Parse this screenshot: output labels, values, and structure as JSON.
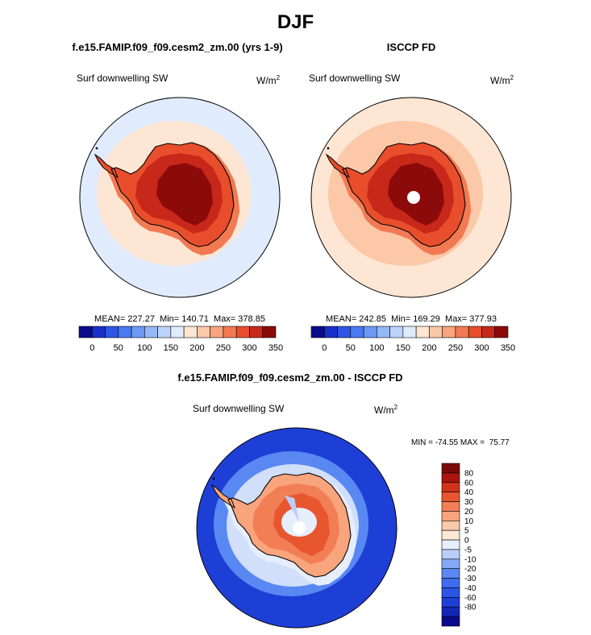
{
  "figure": {
    "title": "DJF",
    "difference_title": "f.e15.FAMIP.f09_f09.cesm2_zm.00 - ISCCP FD"
  },
  "chart_data": [
    {
      "type": "heatmap",
      "projection": "south-polar-stereographic",
      "title": "f.e15.FAMIP.f09_f09.cesm2_zm.00 (yrs 1-9)",
      "variable": "Surf downwelling SW",
      "units_base": "W/m",
      "units_exp": "2",
      "stats_text": "MEAN= 227.27  Min= 140.71  Max= 378.85",
      "mean": 227.27,
      "min": 140.71,
      "max": 378.85,
      "colorbar": {
        "colors": [
          "#0a0a8c",
          "#1a2fc8",
          "#2f55e6",
          "#4a79f2",
          "#6d98f4",
          "#94b7f7",
          "#bcd4fa",
          "#e0ecfd",
          "#fde6d4",
          "#fbc8a8",
          "#f8a47c",
          "#f27a52",
          "#e84e2c",
          "#c8281a",
          "#8c0a0a"
        ],
        "tick_labels": [
          "0",
          "50",
          "100",
          "150",
          "200",
          "250",
          "300",
          "350"
        ]
      },
      "field": {
        "ocean": "#e0ecfd",
        "inner_ocean": "#fde6d4",
        "coast_band": "#f27a52",
        "ice_margin": "#e84e2c",
        "interior": "#c8281a",
        "plateau": "#8c0a0a"
      }
    },
    {
      "type": "heatmap",
      "projection": "south-polar-stereographic",
      "title": "ISCCP FD",
      "variable": "Surf downwelling SW",
      "units_base": "W/m",
      "units_exp": "2",
      "stats_text": "MEAN= 242.85  Min= 169.29  Max= 377.93",
      "mean": 242.85,
      "min": 169.29,
      "max": 377.93,
      "colorbar": {
        "colors": [
          "#0a0a8c",
          "#1a2fc8",
          "#2f55e6",
          "#4a79f2",
          "#6d98f4",
          "#94b7f7",
          "#bcd4fa",
          "#e0ecfd",
          "#fde6d4",
          "#fbc8a8",
          "#f8a47c",
          "#f27a52",
          "#e84e2c",
          "#c8281a",
          "#8c0a0a"
        ],
        "tick_labels": [
          "0",
          "50",
          "100",
          "150",
          "200",
          "250",
          "300",
          "350"
        ]
      },
      "field": {
        "ocean": "#fde6d4",
        "inner_ocean": "#fbc8a8",
        "coast_band": "#f27a52",
        "ice_margin": "#e84e2c",
        "interior": "#c8281a",
        "plateau": "#8c0a0a"
      }
    },
    {
      "type": "heatmap",
      "projection": "south-polar-stereographic",
      "title": "f.e15.FAMIP.f09_f09.cesm2_zm.00 - ISCCP FD",
      "variable": "Surf downwelling SW",
      "units_base": "W/m",
      "units_exp": "2",
      "stats_text": "MIN = -74.55 MAX =  75.77",
      "min": -74.55,
      "max": 75.77,
      "colorbar": {
        "colors": [
          "#0a0a8c",
          "#1426b4",
          "#1e3fd6",
          "#2a55e6",
          "#3f6cee",
          "#5a88f2",
          "#86a8f5",
          "#b9cef9",
          "#e6eefc",
          "#fde7d6",
          "#fbc8aa",
          "#f8a47d",
          "#f27e55",
          "#e8562f",
          "#d0321c",
          "#a8160e",
          "#7a0a0a"
        ],
        "tick_labels": [
          "80",
          "60",
          "40",
          "30",
          "20",
          "10",
          "5",
          "0",
          "-5",
          "-10",
          "-20",
          "-30",
          "-40",
          "-60",
          "-80"
        ]
      },
      "field": {
        "ocean": "#1e3fd6",
        "inner_ocean": "#5a88f2",
        "coast_band": "#e6eefc",
        "ice_margin": "#f8a47d",
        "interior": "#f27e55",
        "plateau": "#e8562f"
      }
    }
  ]
}
